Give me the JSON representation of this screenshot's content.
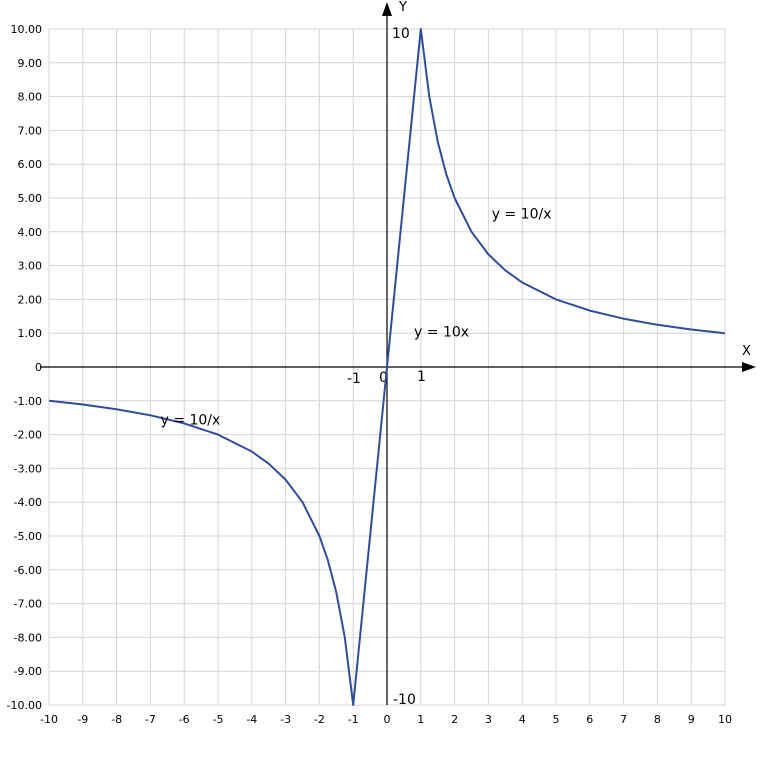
{
  "chart_data": {
    "type": "line",
    "title": "",
    "xlabel": "X",
    "ylabel": "Y",
    "xlim": [
      -10,
      10
    ],
    "ylim": [
      -10,
      10
    ],
    "grid": true,
    "x_ticks": [
      "-10",
      "-9",
      "-8",
      "-7",
      "-6",
      "-5",
      "-4",
      "-3",
      "-2",
      "-1",
      "0",
      "1",
      "2",
      "3",
      "4",
      "5",
      "6",
      "7",
      "8",
      "9",
      "10"
    ],
    "y_ticks": [
      "10.00",
      "9.00",
      "8.00",
      "7.00",
      "6.00",
      "5.00",
      "4.00",
      "3.00",
      "2.00",
      "1.00",
      "0",
      "-1.00",
      "-2.00",
      "-3.00",
      "-4.00",
      "-5.00",
      "-6.00",
      "-7.00",
      "-8.00",
      "-9.00",
      "-10.00"
    ],
    "axis_markers": [
      "-1",
      "0",
      "1",
      "10",
      "-10"
    ],
    "line_color": "#2f4d9a",
    "series": [
      {
        "x": [
          -10,
          -9,
          -8,
          -7,
          -6,
          -5,
          -4,
          -3.5,
          -3,
          -2.5,
          -2,
          -1.75,
          -1.5,
          -1.25,
          -1,
          0,
          1,
          1.25,
          1.5,
          1.75,
          2,
          2.5,
          3,
          3.5,
          4,
          5,
          6,
          7,
          8,
          9,
          10
        ],
        "y": [
          -1,
          -1.11,
          -1.25,
          -1.43,
          -1.67,
          -2,
          -2.5,
          -2.86,
          -3.33,
          -4,
          -5,
          -5.71,
          -6.67,
          -8,
          -10,
          0,
          10,
          8,
          6.67,
          5.71,
          5,
          4,
          3.33,
          2.86,
          2.5,
          2,
          1.67,
          1.43,
          1.25,
          1.11,
          1
        ]
      }
    ],
    "annotations": [
      {
        "text": "y = 10/x",
        "x": 3.1,
        "y": 4.4
      },
      {
        "text": "y = 10x",
        "x": 0.8,
        "y": 0.9
      },
      {
        "text": "y = 10/x",
        "x": -6.7,
        "y": -1.7
      }
    ]
  }
}
